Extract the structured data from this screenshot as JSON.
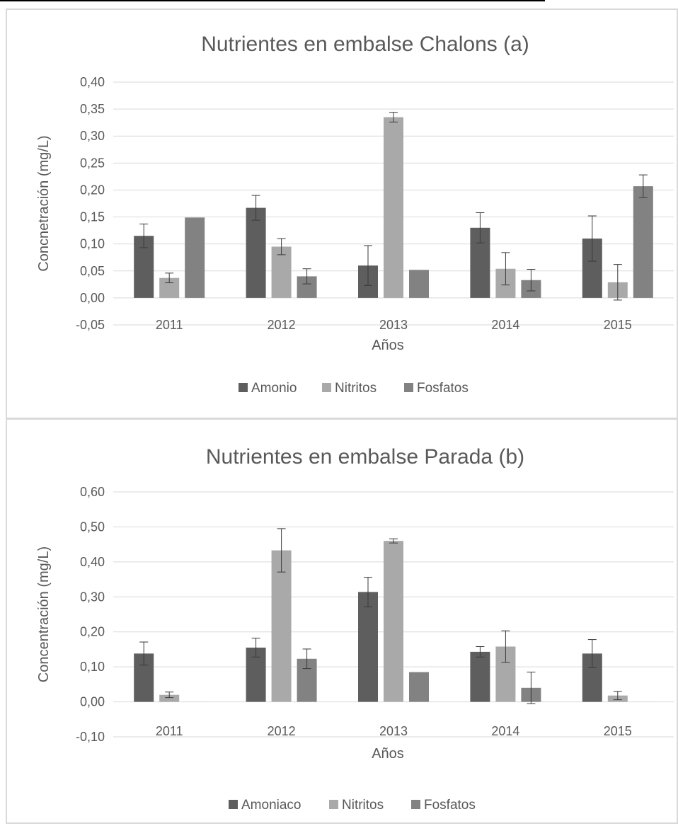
{
  "colors": {
    "amonio": "#5e5e5e",
    "nitritos": "#a9a9a9",
    "fosfatos": "#828282",
    "grid": "#d9d9d9",
    "error_bar": "#3a3a3a"
  },
  "chart_data": [
    {
      "type": "bar",
      "title": "Nutrientes en embalse Chalons (a)",
      "xlabel": "Años",
      "ylabel": "Concnetración (mg/L)",
      "categories": [
        "2011",
        "2012",
        "2013",
        "2014",
        "2015"
      ],
      "ylim": [
        -0.05,
        0.4
      ],
      "yticks": [
        -0.05,
        0.0,
        0.05,
        0.1,
        0.15,
        0.2,
        0.25,
        0.3,
        0.35,
        0.4
      ],
      "ytick_labels": [
        "-0,05",
        "0,00",
        "0,05",
        "0,10",
        "0,15",
        "0,20",
        "0,25",
        "0,30",
        "0,35",
        "0,40"
      ],
      "grid": true,
      "legend_position": "bottom",
      "series": [
        {
          "name": "Amonio",
          "color": "#5e5e5e",
          "values": [
            0.115,
            0.167,
            0.06,
            0.13,
            0.11
          ],
          "errors": [
            0.022,
            0.023,
            0.037,
            0.028,
            0.042
          ]
        },
        {
          "name": "Nitritos",
          "color": "#a9a9a9",
          "values": [
            0.037,
            0.095,
            0.335,
            0.054,
            0.029
          ],
          "errors": [
            0.009,
            0.015,
            0.009,
            0.03,
            0.033
          ]
        },
        {
          "name": "Fosfatos",
          "color": "#828282",
          "values": [
            0.149,
            0.04,
            0.052,
            0.033,
            0.207
          ],
          "errors": [
            0.0,
            0.014,
            0.0,
            0.02,
            0.021
          ]
        }
      ]
    },
    {
      "type": "bar",
      "title": "Nutrientes en embalse Parada (b)",
      "xlabel": "Años",
      "ylabel": "Concentración (mg/L)",
      "categories": [
        "2011",
        "2012",
        "2013",
        "2014",
        "2015"
      ],
      "ylim": [
        -0.1,
        0.6
      ],
      "yticks": [
        -0.1,
        0.0,
        0.1,
        0.2,
        0.3,
        0.4,
        0.5,
        0.6
      ],
      "ytick_labels": [
        "-0,10",
        "0,00",
        "0,10",
        "0,20",
        "0,30",
        "0,40",
        "0,50",
        "0,60"
      ],
      "grid": true,
      "legend_position": "bottom",
      "series": [
        {
          "name": "Amoniaco",
          "color": "#5e5e5e",
          "values": [
            0.138,
            0.155,
            0.314,
            0.143,
            0.138
          ],
          "errors": [
            0.033,
            0.027,
            0.042,
            0.015,
            0.04
          ]
        },
        {
          "name": "Nitritos",
          "color": "#a9a9a9",
          "values": [
            0.02,
            0.433,
            0.46,
            0.158,
            0.018
          ],
          "errors": [
            0.008,
            0.062,
            0.006,
            0.045,
            0.012
          ]
        },
        {
          "name": "Fosfatos",
          "color": "#828282",
          "values": [
            0.0,
            0.123,
            0.085,
            0.04,
            0.0
          ],
          "errors": [
            0.0,
            0.028,
            0.0,
            0.045,
            0.0
          ]
        }
      ]
    }
  ]
}
